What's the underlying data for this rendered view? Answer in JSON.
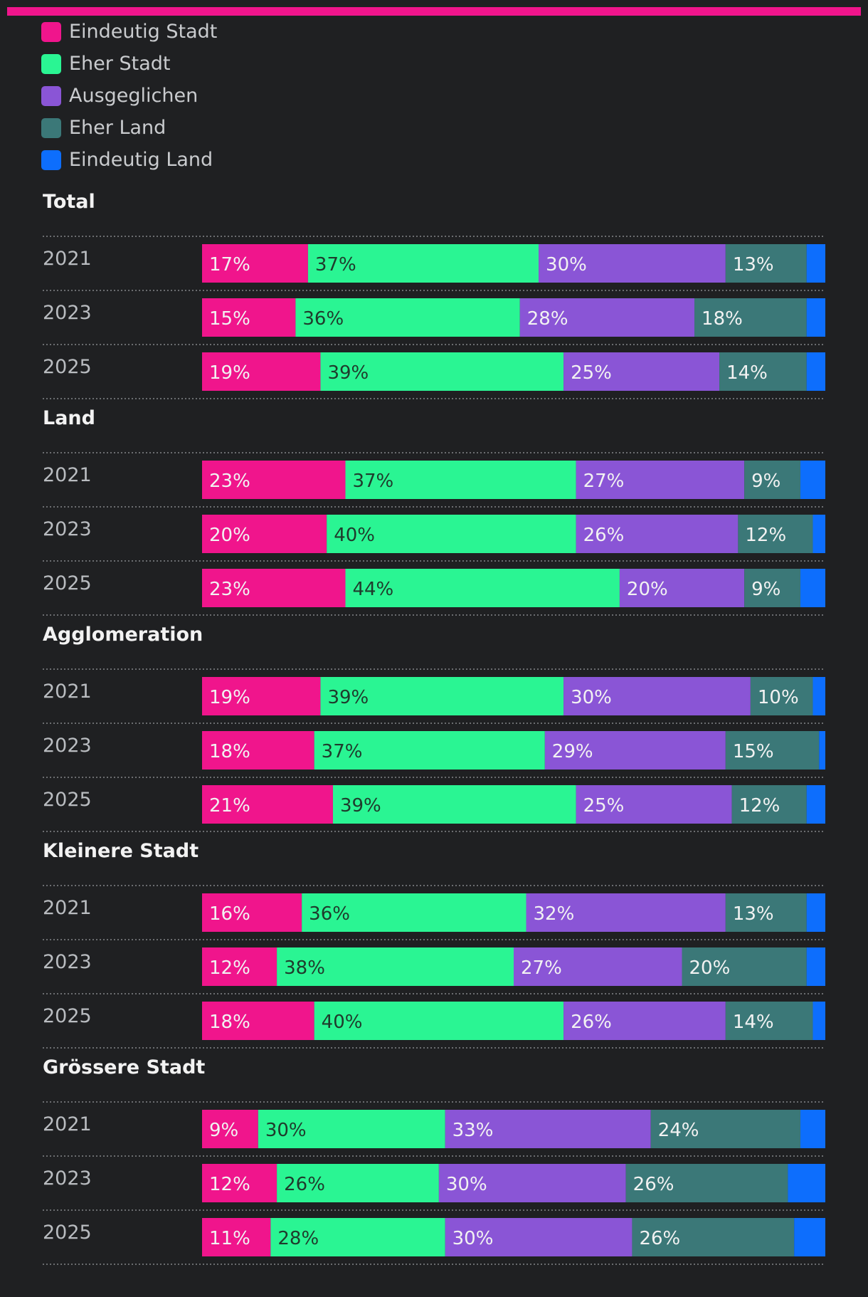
{
  "colors": {
    "eindeutig_stadt": "#f0158c",
    "eher_stadt": "#2af593",
    "ausgeglichen": "#8a55d6",
    "eher_land": "#3b7878",
    "eindeutig_land": "#0d6efd",
    "background": "#1f2022"
  },
  "legend": [
    {
      "label": "Eindeutig Stadt",
      "color": "#f0158c"
    },
    {
      "label": "Eher Stadt",
      "color": "#2af593"
    },
    {
      "label": "Ausgeglichen",
      "color": "#8a55d6"
    },
    {
      "label": "Eher Land",
      "color": "#3b7878"
    },
    {
      "label": "Eindeutig Land",
      "color": "#0d6efd"
    }
  ],
  "chart_data": {
    "type": "bar",
    "orientation": "horizontal",
    "stacked": true,
    "normalized": true,
    "series_names": [
      "Eindeutig Stadt",
      "Eher Stadt",
      "Ausgeglichen",
      "Eher Land",
      "Eindeutig Land"
    ],
    "groups": [
      {
        "title": "Total",
        "rows": [
          {
            "year": "2021",
            "values": [
              17,
              37,
              30,
              13,
              3
            ],
            "labels": [
              "17%",
              "37%",
              "30%",
              "13%",
              ""
            ]
          },
          {
            "year": "2023",
            "values": [
              15,
              36,
              28,
              18,
              3
            ],
            "labels": [
              "15%",
              "36%",
              "28%",
              "18%",
              ""
            ]
          },
          {
            "year": "2025",
            "values": [
              19,
              39,
              25,
              14,
              3
            ],
            "labels": [
              "19%",
              "39%",
              "25%",
              "14%",
              ""
            ]
          }
        ]
      },
      {
        "title": "Land",
        "rows": [
          {
            "year": "2021",
            "values": [
              23,
              37,
              27,
              9,
              4
            ],
            "labels": [
              "23%",
              "37%",
              "27%",
              "9%",
              ""
            ]
          },
          {
            "year": "2023",
            "values": [
              20,
              40,
              26,
              12,
              2
            ],
            "labels": [
              "20%",
              "40%",
              "26%",
              "12%",
              ""
            ]
          },
          {
            "year": "2025",
            "values": [
              23,
              44,
              20,
              9,
              4
            ],
            "labels": [
              "23%",
              "44%",
              "20%",
              "9%",
              ""
            ]
          }
        ]
      },
      {
        "title": "Agglomeration",
        "rows": [
          {
            "year": "2021",
            "values": [
              19,
              39,
              30,
              10,
              2
            ],
            "labels": [
              "19%",
              "39%",
              "30%",
              "10%",
              ""
            ]
          },
          {
            "year": "2023",
            "values": [
              18,
              37,
              29,
              15,
              1
            ],
            "labels": [
              "18%",
              "37%",
              "29%",
              "15%",
              ""
            ]
          },
          {
            "year": "2025",
            "values": [
              21,
              39,
              25,
              12,
              3
            ],
            "labels": [
              "21%",
              "39%",
              "25%",
              "12%",
              ""
            ]
          }
        ]
      },
      {
        "title": "Kleinere Stadt",
        "rows": [
          {
            "year": "2021",
            "values": [
              16,
              36,
              32,
              13,
              3
            ],
            "labels": [
              "16%",
              "36%",
              "32%",
              "13%",
              ""
            ]
          },
          {
            "year": "2023",
            "values": [
              12,
              38,
              27,
              20,
              3
            ],
            "labels": [
              "12%",
              "38%",
              "27%",
              "20%",
              ""
            ]
          },
          {
            "year": "2025",
            "values": [
              18,
              40,
              26,
              14,
              2
            ],
            "labels": [
              "18%",
              "40%",
              "26%",
              "14%",
              ""
            ]
          }
        ]
      },
      {
        "title": "Grössere Stadt",
        "rows": [
          {
            "year": "2021",
            "values": [
              9,
              30,
              33,
              24,
              4
            ],
            "labels": [
              "9%",
              "30%",
              "33%",
              "24%",
              ""
            ]
          },
          {
            "year": "2023",
            "values": [
              12,
              26,
              30,
              26,
              6
            ],
            "labels": [
              "12%",
              "26%",
              "30%",
              "26%",
              ""
            ]
          },
          {
            "year": "2025",
            "values": [
              11,
              28,
              30,
              26,
              5
            ],
            "labels": [
              "11%",
              "28%",
              "30%",
              "26%",
              ""
            ]
          }
        ]
      }
    ],
    "xlim": [
      0,
      100
    ],
    "grid": false,
    "legend_position": "top-left"
  }
}
